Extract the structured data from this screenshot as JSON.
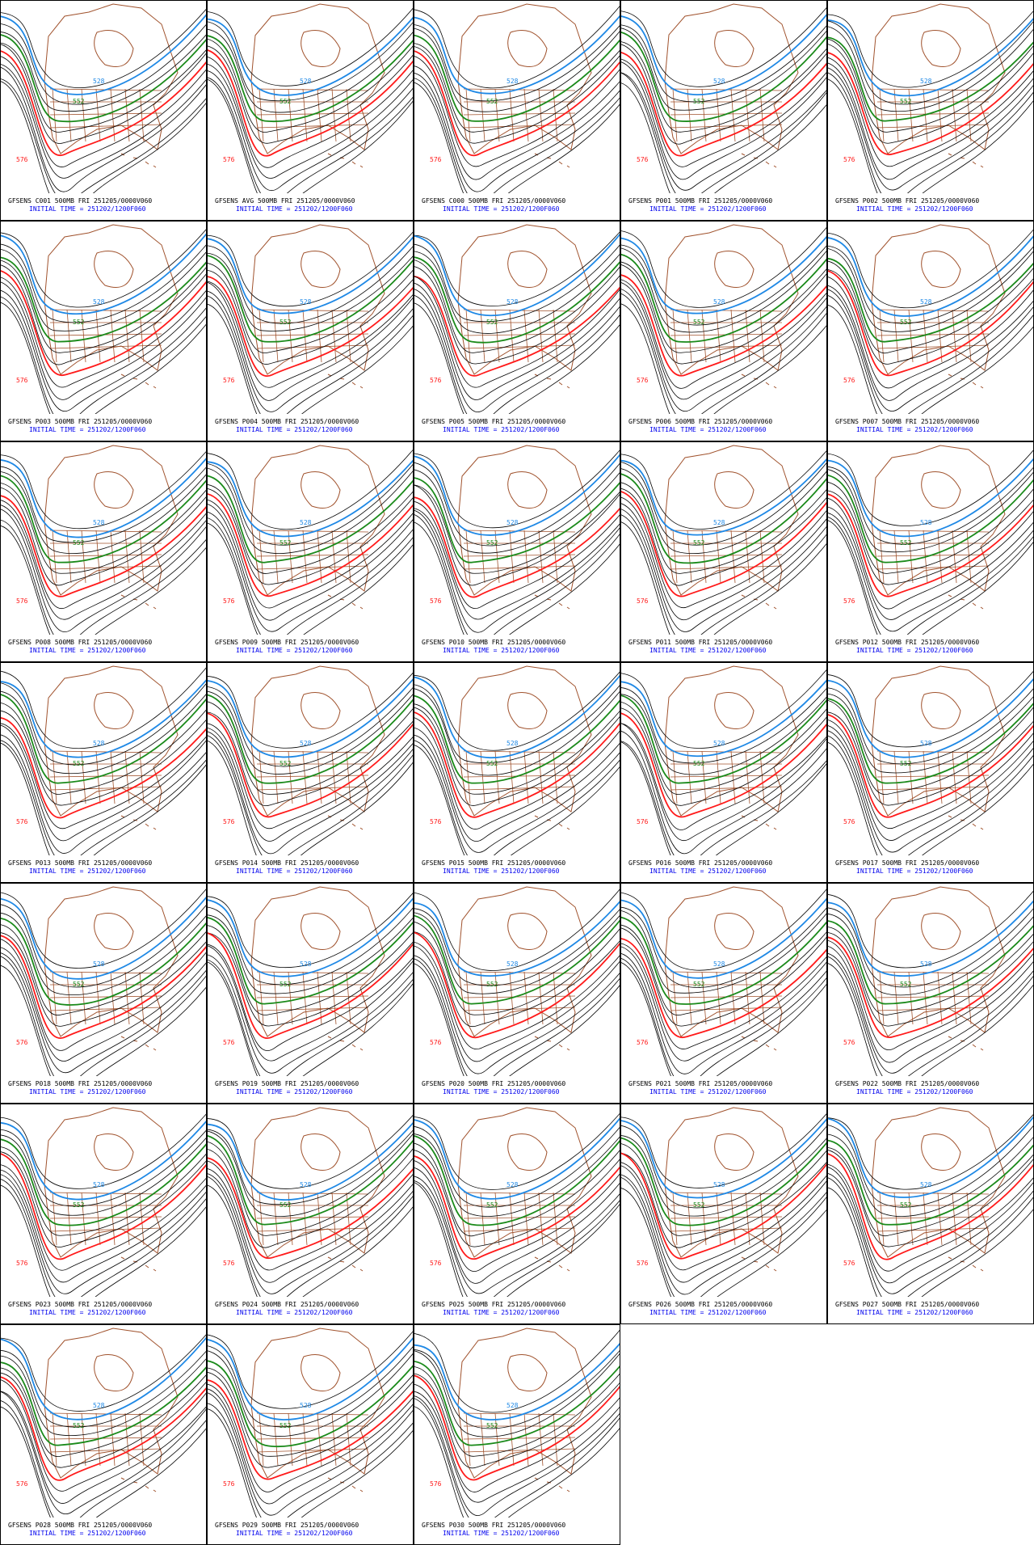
{
  "panels": [
    {
      "title": "GFSENS C001 500MB FRI 251205/0000V060",
      "subtitle": "INITIAL TIME = 251202/1200F060",
      "labels": [
        "576",
        "552",
        "528"
      ]
    },
    {
      "title": "GFSENS AVG 500MB FRI 251205/0000V060",
      "subtitle": "INITIAL TIME = 251202/1200F060",
      "labels": [
        "576",
        "552",
        "528"
      ]
    },
    {
      "title": "GFSENS C000 500MB FRI 251205/0000V060",
      "subtitle": "INITIAL TIME = 251202/1200F060",
      "labels": [
        "576",
        "552",
        "528"
      ]
    },
    {
      "title": "GFSENS P001 500MB FRI 251205/0000V060",
      "subtitle": "INITIAL TIME = 251202/1200F060",
      "labels": [
        "576",
        "552",
        "528"
      ]
    },
    {
      "title": "GFSENS P002 500MB FRI 251205/0000V060",
      "subtitle": "INITIAL TIME = 251202/1200F060",
      "labels": [
        "576",
        "552",
        "528"
      ]
    },
    {
      "title": "GFSENS P003 500MB FRI 251205/0000V060",
      "subtitle": "INITIAL TIME = 251202/1200F060",
      "labels": [
        "576",
        "552",
        "528"
      ]
    },
    {
      "title": "GFSENS P004 500MB FRI 251205/0000V060",
      "subtitle": "INITIAL TIME = 251202/1200F060",
      "labels": [
        "576",
        "552",
        "528"
      ]
    },
    {
      "title": "GFSENS P005 500MB FRI 251205/0000V060",
      "subtitle": "INITIAL TIME = 251202/1200F060",
      "labels": [
        "576",
        "552",
        "528"
      ]
    },
    {
      "title": "GFSENS P006 500MB FRI 251205/0000V060",
      "subtitle": "INITIAL TIME = 251202/1200F060",
      "labels": [
        "576",
        "552",
        "528"
      ]
    },
    {
      "title": "GFSENS P007 500MB FRI 251205/0000V060",
      "subtitle": "INITIAL TIME = 251202/1200F060",
      "labels": [
        "576",
        "552",
        "528"
      ]
    },
    {
      "title": "GFSENS P008 500MB FRI 251205/0000V060",
      "subtitle": "INITIAL TIME = 251202/1200F060",
      "labels": [
        "576",
        "552",
        "528"
      ]
    },
    {
      "title": "GFSENS P009 500MB FRI 251205/0000V060",
      "subtitle": "INITIAL TIME = 251202/1200F060",
      "labels": [
        "576",
        "552",
        "528"
      ]
    },
    {
      "title": "GFSENS P010 500MB FRI 251205/0000V060",
      "subtitle": "INITIAL TIME = 251202/1200F060",
      "labels": [
        "576",
        "552",
        "528"
      ]
    },
    {
      "title": "GFSENS P011 500MB FRI 251205/0000V060",
      "subtitle": "INITIAL TIME = 251202/1200F060",
      "labels": [
        "576",
        "552",
        "528"
      ]
    },
    {
      "title": "GFSENS P012 500MB FRI 251205/0000V060",
      "subtitle": "INITIAL TIME = 251202/1200F060",
      "labels": [
        "576",
        "552",
        "528"
      ]
    },
    {
      "title": "GFSENS P013 500MB FRI 251205/0000V060",
      "subtitle": "INITIAL TIME = 251202/1200F060",
      "labels": [
        "576",
        "552",
        "528"
      ]
    },
    {
      "title": "GFSENS P014 500MB FRI 251205/0000V060",
      "subtitle": "INITIAL TIME = 251202/1200F060",
      "labels": [
        "576",
        "552",
        "528"
      ]
    },
    {
      "title": "GFSENS P015 500MB FRI 251205/0000V060",
      "subtitle": "INITIAL TIME = 251202/1200F060",
      "labels": [
        "576",
        "552",
        "528"
      ]
    },
    {
      "title": "GFSENS P016 500MB FRI 251205/0000V060",
      "subtitle": "INITIAL TIME = 251202/1200F060",
      "labels": [
        "576",
        "552",
        "528"
      ]
    },
    {
      "title": "GFSENS P017 500MB FRI 251205/0000V060",
      "subtitle": "INITIAL TIME = 251202/1200F060",
      "labels": [
        "576",
        "552",
        "528"
      ]
    },
    {
      "title": "GFSENS P018 500MB FRI 251205/0000V060",
      "subtitle": "INITIAL TIME = 251202/1200F060",
      "labels": [
        "576",
        "552",
        "528"
      ]
    },
    {
      "title": "GFSENS P019 500MB FRI 251205/0000V060",
      "subtitle": "INITIAL TIME = 251202/1200F060",
      "labels": [
        "576",
        "552",
        "528"
      ]
    },
    {
      "title": "GFSENS P020 500MB FRI 251205/0000V060",
      "subtitle": "INITIAL TIME = 251202/1200F060",
      "labels": [
        "576",
        "552",
        "528"
      ]
    },
    {
      "title": "GFSENS P021 500MB FRI 251205/0000V060",
      "subtitle": "INITIAL TIME = 251202/1200F060",
      "labels": [
        "576",
        "552",
        "528"
      ]
    },
    {
      "title": "GFSENS P022 500MB FRI 251205/0000V060",
      "subtitle": "INITIAL TIME = 251202/1200F060",
      "labels": [
        "576",
        "552",
        "528"
      ]
    },
    {
      "title": "GFSENS P023 500MB FRI 251205/0000V060",
      "subtitle": "INITIAL TIME = 251202/1200F060",
      "labels": [
        "576",
        "552",
        "528"
      ]
    },
    {
      "title": "GFSENS P024 500MB FRI 251205/0000V060",
      "subtitle": "INITIAL TIME = 251202/1200F060",
      "labels": [
        "576",
        "552",
        "528"
      ]
    },
    {
      "title": "GFSENS P025 500MB FRI 251205/0000V060",
      "subtitle": "INITIAL TIME = 251202/1200F060",
      "labels": [
        "576",
        "552",
        "528"
      ]
    },
    {
      "title": "GFSENS P026 500MB FRI 251205/0000V060",
      "subtitle": "INITIAL TIME = 251202/1200F060",
      "labels": [
        "576",
        "552",
        "528"
      ]
    },
    {
      "title": "GFSENS P027 500MB FRI 251205/0000V060",
      "subtitle": "INITIAL TIME = 251202/1200F060",
      "labels": [
        "576",
        "552",
        "528"
      ]
    },
    {
      "title": "GFSENS P028 500MB FRI 251205/0000V060",
      "subtitle": "INITIAL TIME = 251202/1200F060",
      "labels": [
        "576",
        "552",
        "528"
      ]
    },
    {
      "title": "GFSENS P029 500MB FRI 251205/0000V060",
      "subtitle": "INITIAL TIME = 251202/1200F060",
      "labels": [
        "576",
        "552",
        "528"
      ]
    },
    {
      "title": "GFSENS P030 500MB FRI 251205/0000V060",
      "subtitle": "INITIAL TIME = 251202/1200F060",
      "labels": [
        "576",
        "552",
        "528"
      ]
    }
  ]
}
